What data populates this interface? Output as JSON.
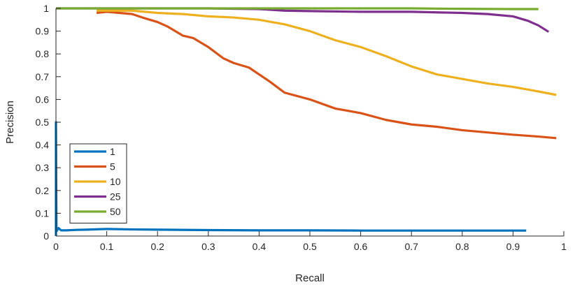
{
  "chart_data": {
    "type": "line",
    "title": "",
    "xlabel": "Recall",
    "ylabel": "Precision",
    "xlim": [
      0,
      1
    ],
    "ylim": [
      0,
      1
    ],
    "xticks": [
      "0",
      "0.1",
      "0.2",
      "0.3",
      "0.4",
      "0.5",
      "0.6",
      "0.7",
      "0.8",
      "0.9",
      "1"
    ],
    "yticks": [
      "0",
      "0.1",
      "0.2",
      "0.3",
      "0.4",
      "0.5",
      "0.6",
      "0.7",
      "0.8",
      "0.9",
      "1"
    ],
    "grid": false,
    "legend_position": "lower-left",
    "series": [
      {
        "name": "1",
        "color": "#0072BD",
        "points": [
          [
            0.0,
            0.0
          ],
          [
            0.0,
            0.5
          ],
          [
            0.001,
            0.02
          ],
          [
            0.005,
            0.035
          ],
          [
            0.01,
            0.025
          ],
          [
            0.02,
            0.025
          ],
          [
            0.04,
            0.027
          ],
          [
            0.06,
            0.028
          ],
          [
            0.1,
            0.031
          ],
          [
            0.15,
            0.029
          ],
          [
            0.2,
            0.028
          ],
          [
            0.3,
            0.026
          ],
          [
            0.4,
            0.025
          ],
          [
            0.5,
            0.025
          ],
          [
            0.6,
            0.024
          ],
          [
            0.7,
            0.024
          ],
          [
            0.8,
            0.024
          ],
          [
            0.926,
            0.024
          ]
        ]
      },
      {
        "name": "5",
        "color": "#D95319",
        "points": [
          [
            0.08,
            0.98
          ],
          [
            0.1,
            0.985
          ],
          [
            0.15,
            0.975
          ],
          [
            0.17,
            0.96
          ],
          [
            0.2,
            0.94
          ],
          [
            0.22,
            0.92
          ],
          [
            0.25,
            0.88
          ],
          [
            0.27,
            0.87
          ],
          [
            0.3,
            0.83
          ],
          [
            0.33,
            0.78
          ],
          [
            0.35,
            0.76
          ],
          [
            0.38,
            0.74
          ],
          [
            0.4,
            0.71
          ],
          [
            0.42,
            0.68
          ],
          [
            0.45,
            0.63
          ],
          [
            0.5,
            0.6
          ],
          [
            0.55,
            0.56
          ],
          [
            0.6,
            0.54
          ],
          [
            0.65,
            0.51
          ],
          [
            0.7,
            0.49
          ],
          [
            0.75,
            0.48
          ],
          [
            0.8,
            0.465
          ],
          [
            0.85,
            0.455
          ],
          [
            0.9,
            0.445
          ],
          [
            0.95,
            0.437
          ],
          [
            0.985,
            0.43
          ]
        ]
      },
      {
        "name": "10",
        "color": "#EDB120",
        "points": [
          [
            0.08,
            0.99
          ],
          [
            0.15,
            0.99
          ],
          [
            0.2,
            0.98
          ],
          [
            0.25,
            0.975
          ],
          [
            0.3,
            0.965
          ],
          [
            0.35,
            0.96
          ],
          [
            0.4,
            0.95
          ],
          [
            0.45,
            0.93
          ],
          [
            0.5,
            0.9
          ],
          [
            0.55,
            0.86
          ],
          [
            0.6,
            0.83
          ],
          [
            0.65,
            0.79
          ],
          [
            0.7,
            0.745
          ],
          [
            0.75,
            0.71
          ],
          [
            0.8,
            0.69
          ],
          [
            0.85,
            0.67
          ],
          [
            0.9,
            0.655
          ],
          [
            0.95,
            0.635
          ],
          [
            0.985,
            0.62
          ]
        ]
      },
      {
        "name": "25",
        "color": "#7E2F8E",
        "points": [
          [
            0.0,
            1.0
          ],
          [
            0.3,
            1.0
          ],
          [
            0.4,
            0.997
          ],
          [
            0.45,
            0.99
          ],
          [
            0.5,
            0.988
          ],
          [
            0.6,
            0.985
          ],
          [
            0.7,
            0.985
          ],
          [
            0.8,
            0.98
          ],
          [
            0.85,
            0.975
          ],
          [
            0.9,
            0.965
          ],
          [
            0.93,
            0.945
          ],
          [
            0.95,
            0.925
          ],
          [
            0.97,
            0.897
          ]
        ]
      },
      {
        "name": "50",
        "color": "#77AC30",
        "points": [
          [
            0.0,
            1.0
          ],
          [
            0.3,
            1.0
          ],
          [
            0.5,
            1.0
          ],
          [
            0.7,
            1.0
          ],
          [
            0.8,
            0.998
          ],
          [
            0.9,
            0.997
          ],
          [
            0.95,
            0.997
          ]
        ]
      }
    ]
  }
}
